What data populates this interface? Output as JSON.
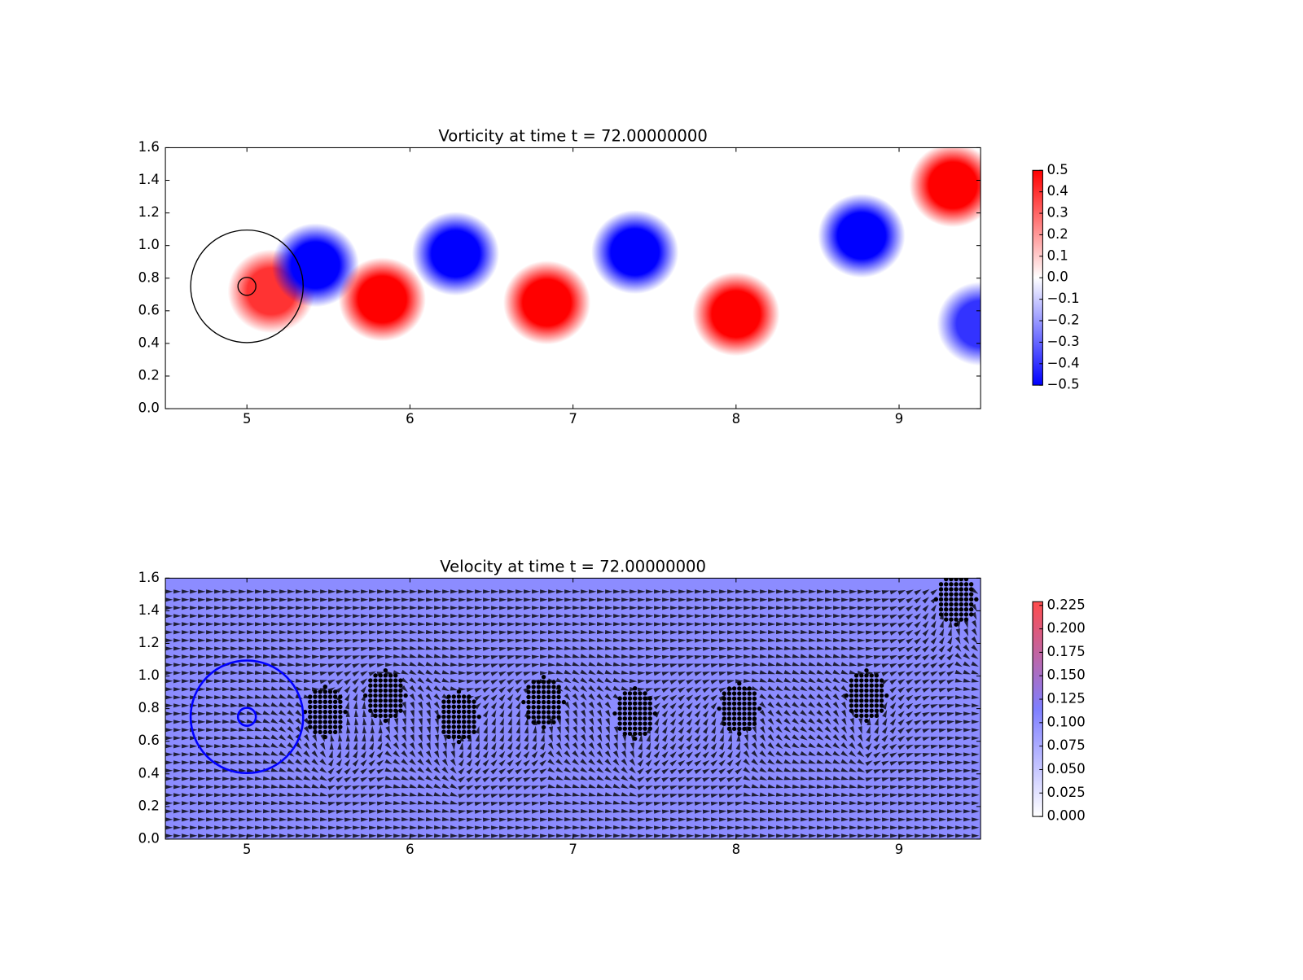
{
  "chart_data": [
    {
      "type": "vorticity",
      "title": "Vorticity at time t =    72.00000000",
      "xlim": [
        4.5,
        9.5
      ],
      "ylim": [
        0,
        1.6
      ],
      "xticks": [
        5,
        6,
        7,
        8,
        9
      ],
      "yticks": [
        {
          "value": 0,
          "label": "0.0"
        },
        {
          "value": 0.2,
          "label": "0.2"
        },
        {
          "value": 0.4,
          "label": "0.4"
        },
        {
          "value": 0.6,
          "label": "0.6"
        },
        {
          "value": 0.8,
          "label": "0.8"
        },
        {
          "value": 1.0,
          "label": "1.0"
        },
        {
          "value": 1.2,
          "label": "1.2"
        },
        {
          "value": 1.4,
          "label": "1.4"
        },
        {
          "value": 1.6,
          "label": "1.6"
        }
      ],
      "clim": [
        -0.5,
        0.5
      ],
      "colors": [
        "#0000ff",
        "#ffffff",
        "#ff0000"
      ],
      "cticks": [
        0.5,
        0.4,
        0.3,
        0.2,
        0.1,
        {
          "value": 0,
          "label": "0.0"
        },
        {
          "value": -0.1,
          "label": "−0.1"
        },
        {
          "value": -0.2,
          "label": "−0.2"
        },
        {
          "value": -0.3,
          "label": "−0.3"
        },
        {
          "value": -0.4,
          "label": "−0.4"
        },
        {
          "value": -0.5,
          "label": "−0.5"
        }
      ],
      "vortices": {
        "x": [
          5.15,
          5.42,
          5.83,
          6.28,
          6.84,
          7.38,
          8.0,
          8.77,
          9.33,
          9.5
        ],
        "y": [
          0.72,
          0.88,
          0.67,
          0.95,
          0.65,
          0.96,
          0.58,
          1.06,
          1.37,
          0.52
        ],
        "values": [
          0.4,
          -0.5,
          0.5,
          -0.5,
          0.5,
          -0.5,
          0.5,
          -0.5,
          0.5,
          -0.4
        ]
      },
      "circles": {
        "x": [
          5,
          5
        ],
        "y": [
          0.75,
          0.75
        ],
        "r": [
          0.345,
          0.055
        ],
        "color": "#000000"
      }
    },
    {
      "type": "velocity",
      "title": "Velocity at time t =    72.00000000",
      "xlim": [
        4.5,
        9.5
      ],
      "ylim": [
        0,
        1.6
      ],
      "xticks": [
        5,
        6,
        7,
        8,
        9
      ],
      "yticks": [
        {
          "value": 0,
          "label": "0.0"
        },
        {
          "value": 0.2,
          "label": "0.2"
        },
        {
          "value": 0.4,
          "label": "0.4"
        },
        {
          "value": 0.6,
          "label": "0.6"
        },
        {
          "value": 0.8,
          "label": "0.8"
        },
        {
          "value": 1.0,
          "label": "1.0"
        },
        {
          "value": 1.2,
          "label": "1.2"
        },
        {
          "value": 1.4,
          "label": "1.4"
        },
        {
          "value": 1.6,
          "label": "1.6"
        }
      ],
      "clim": [
        0,
        0.229
      ],
      "colors": [
        "#ffffff",
        "#7f7fff",
        "#ff4c4c"
      ],
      "cticks": [
        0.225,
        {
          "value": 0.2,
          "label": "0.200"
        },
        0.175,
        {
          "value": 0.15,
          "label": "0.150"
        },
        0.125,
        {
          "value": 0.1,
          "label": "0.100"
        },
        0.075,
        {
          "value": 0.05,
          "label": "0.050"
        },
        0.025,
        {
          "value": 0,
          "label": "0.000"
        }
      ],
      "dot_clusters": {
        "x": [
          5.48,
          5.85,
          6.3,
          6.82,
          7.38,
          8.02,
          8.8,
          9.35
        ],
        "y": [
          0.78,
          0.88,
          0.75,
          0.84,
          0.77,
          0.8,
          0.88,
          1.47
        ]
      },
      "circles": {
        "x": [
          5,
          5
        ],
        "y": [
          0.75,
          0.75
        ],
        "r": [
          0.345,
          0.055
        ],
        "color": "#0000ff"
      }
    }
  ]
}
